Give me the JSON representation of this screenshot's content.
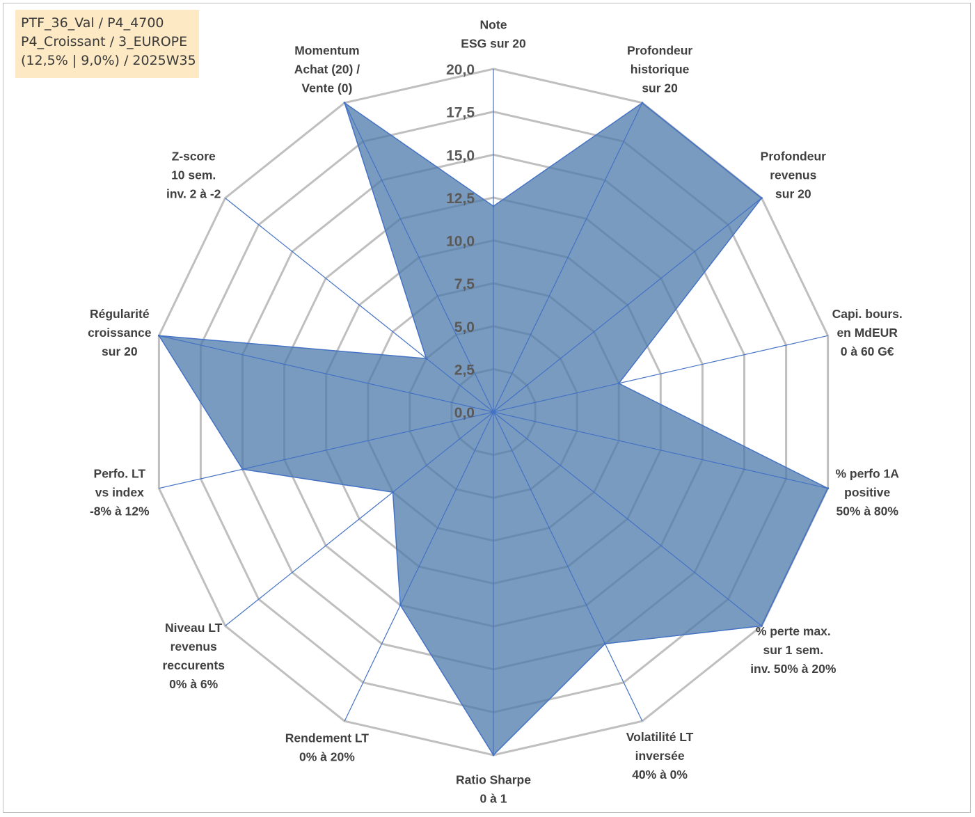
{
  "info_box": {
    "lines": [
      "PTF_36_Val / P4_4700",
      "P4_Croissant / 3_EUROPE",
      "(12,5% | 9,0%) / 2025W35"
    ]
  },
  "colors": {
    "series_fill": "#4e7aab",
    "series_line": "#4472c4",
    "grid": "#bfbfbf",
    "tick_text": "#595959",
    "label_text": "#404040",
    "info_bg": "#fde9c4"
  },
  "chart_data": {
    "type": "radar",
    "title": "",
    "r_range": [
      0,
      20
    ],
    "r_ticks": [
      "0,0",
      "2,5",
      "5,0",
      "7,5",
      "10,0",
      "12,5",
      "15,0",
      "17,5",
      "20,0"
    ],
    "grid": true,
    "legend": "none",
    "axes": [
      [
        "Note",
        "ESG sur 20"
      ],
      [
        "Profondeur",
        "historique",
        "sur 20"
      ],
      [
        "Profondeur",
        "revenus",
        "sur 20"
      ],
      [
        "Capi. bours.",
        "en MdEUR",
        "0 à 60 G€"
      ],
      [
        "% perfo 1A",
        "positive",
        "50% à 80%"
      ],
      [
        "% perte max.",
        "sur 1 sem.",
        "inv. 50% à 20%"
      ],
      [
        "Volatilité LT",
        "inversée",
        "40% à 0%"
      ],
      [
        "Ratio Sharpe",
        "0 à 1"
      ],
      [
        "Rendement LT",
        "0% à 20%"
      ],
      [
        "Niveau LT",
        "revenus",
        "reccurents",
        "0% à 6%"
      ],
      [
        "Perfo. LT",
        "vs index",
        "-8% à 12%"
      ],
      [
        "Régularité",
        "croissance",
        "sur 20"
      ],
      [
        "Z-score",
        "10 sem.",
        "inv. 2 à -2"
      ],
      [
        "Momentum",
        "Achat (20) /",
        "Vente (0)"
      ]
    ],
    "series": [
      {
        "values": [
          12,
          20,
          20,
          7.5,
          20,
          20,
          15,
          20,
          12.5,
          7.5,
          15,
          20,
          5,
          20
        ]
      }
    ]
  }
}
